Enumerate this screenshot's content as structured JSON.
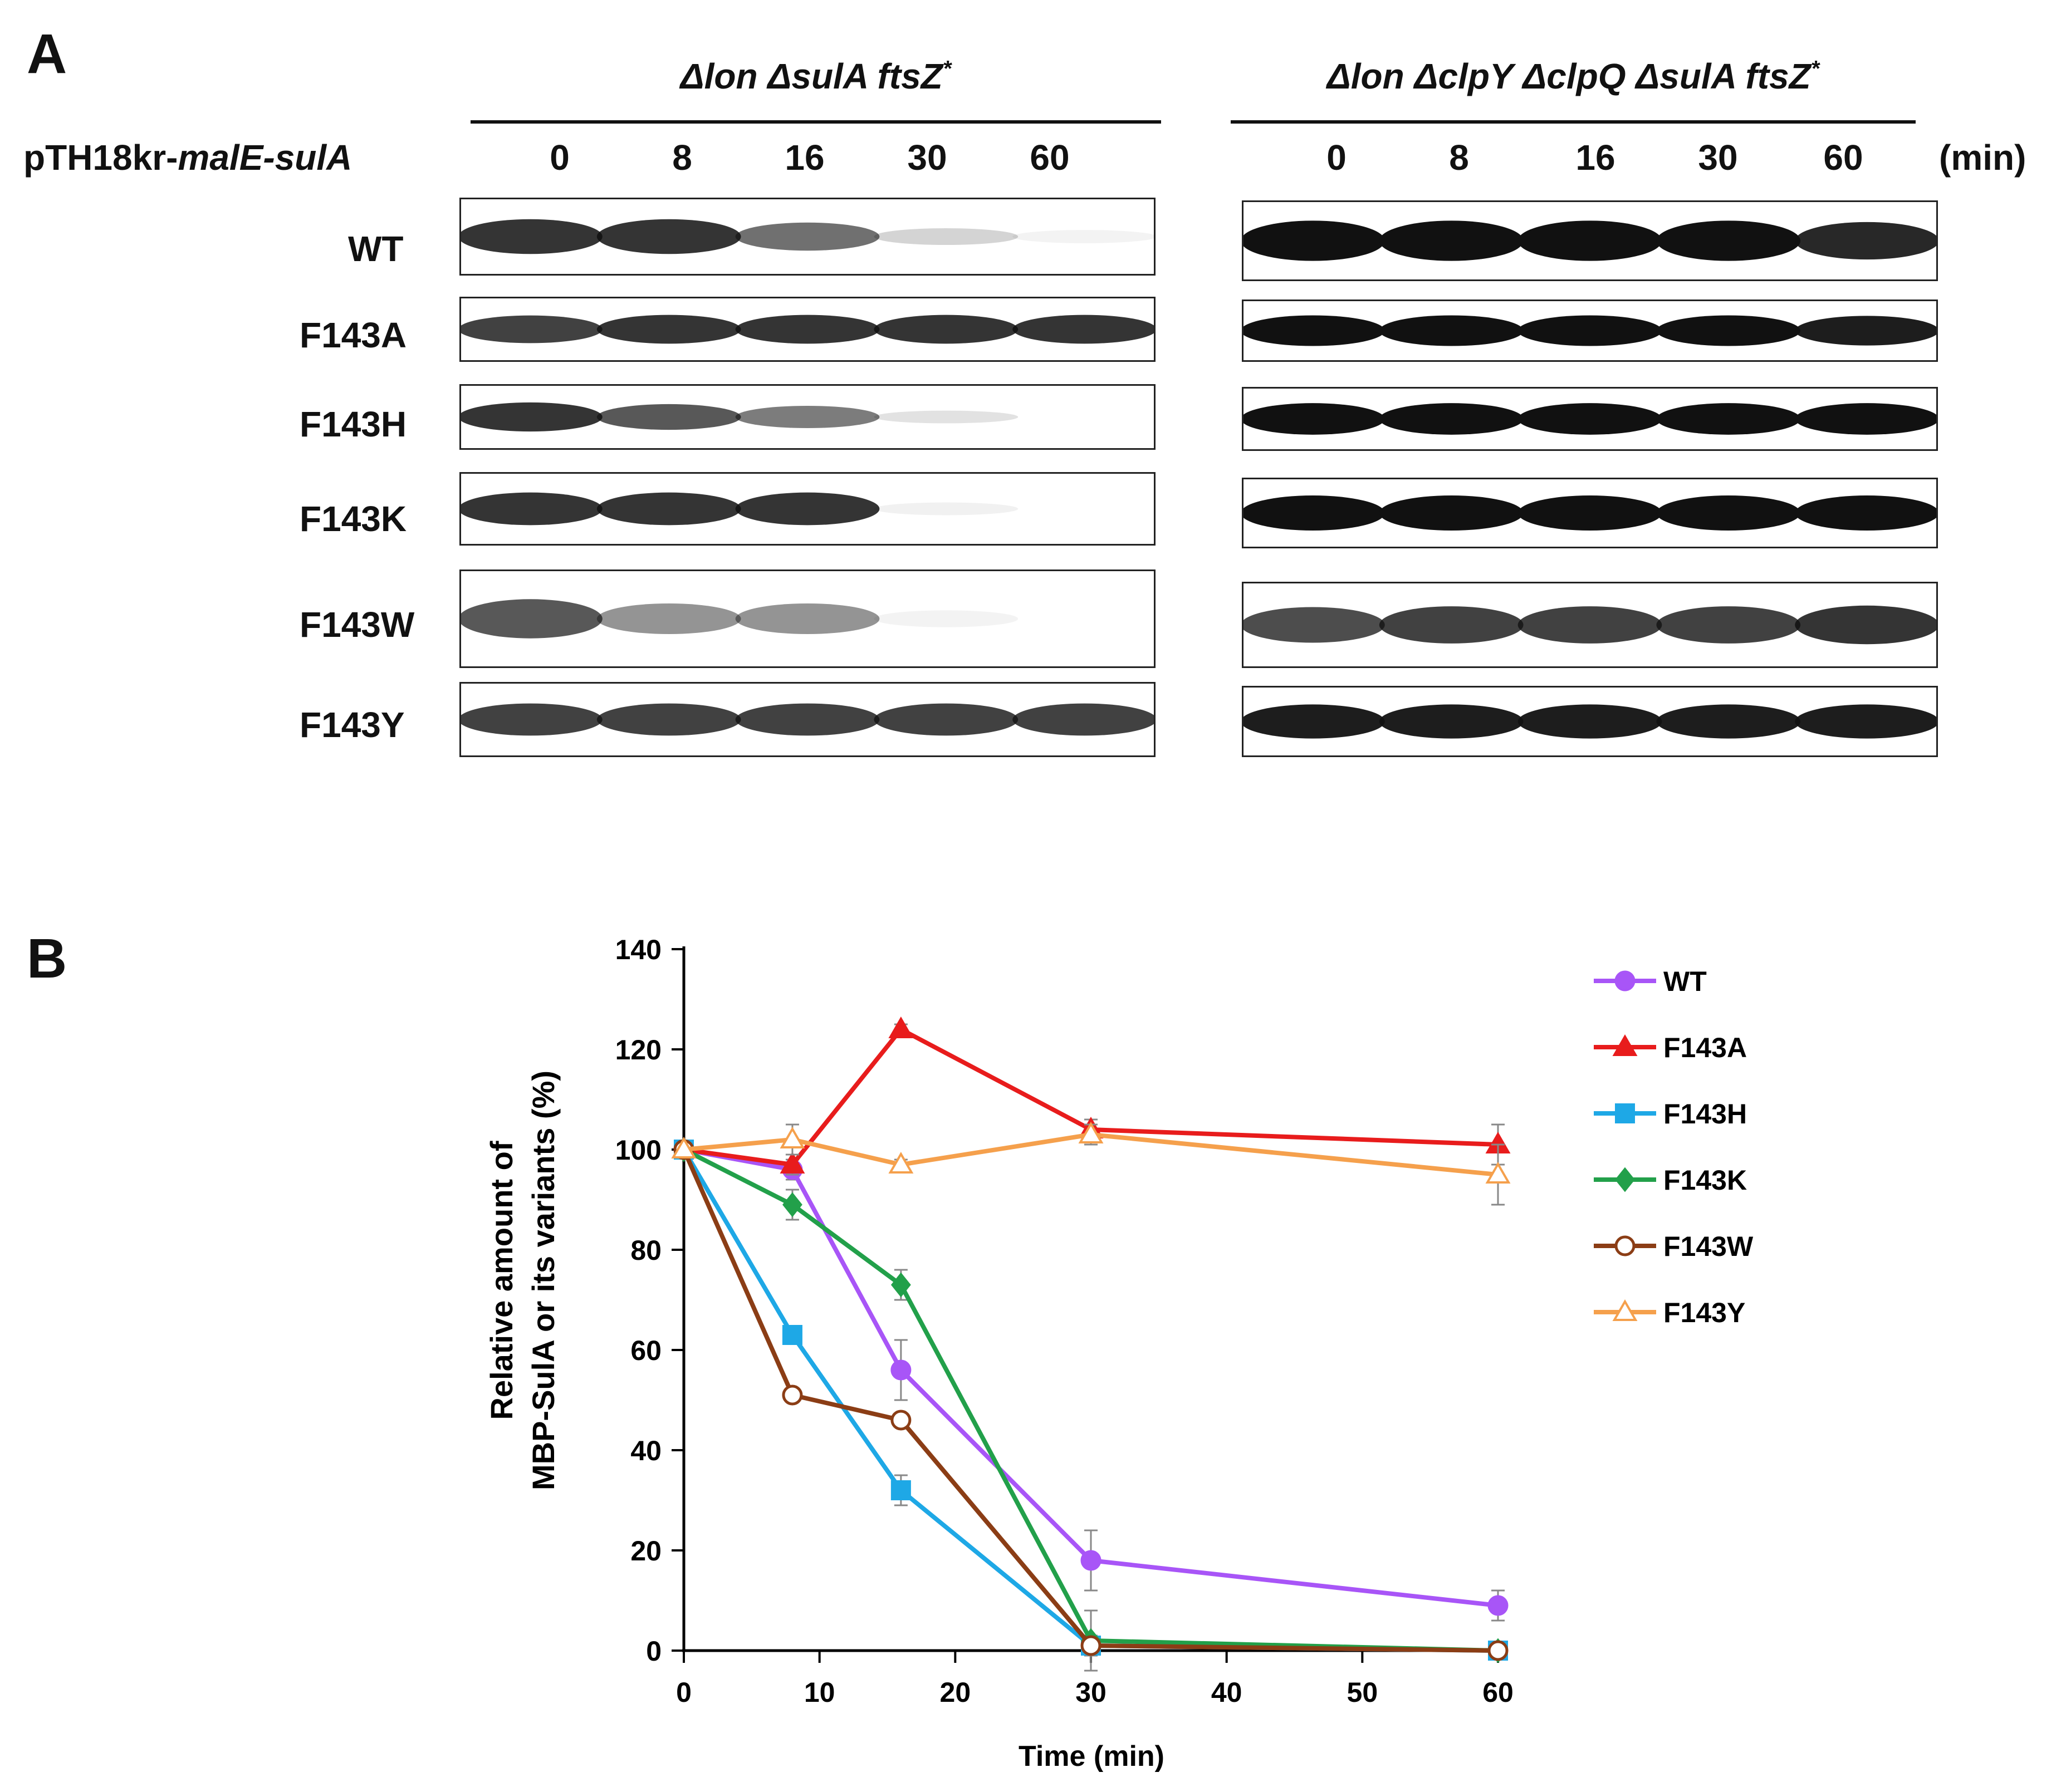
{
  "panel_a": {
    "letter": "A",
    "plasmid_prefix": "pTH18kr-",
    "plasmid_gene": "malE-sulA",
    "strain_left": "Δlon ΔsulA ftsZ",
    "strain_right": "Δlon ΔclpY ΔclpQ ΔsulA ftsZ",
    "strain_sup": "*",
    "time_points": [
      "0",
      "8",
      "16",
      "30",
      "60"
    ],
    "unit": "(min)",
    "rows": [
      "WT",
      "F143A",
      "F143H",
      "F143K",
      "F143W",
      "F143Y"
    ],
    "band_intensity_left": [
      [
        0.85,
        0.85,
        0.6,
        0.18,
        0.05
      ],
      [
        0.8,
        0.85,
        0.85,
        0.85,
        0.85
      ],
      [
        0.85,
        0.7,
        0.55,
        0.12,
        0.0
      ],
      [
        0.85,
        0.85,
        0.85,
        0.06,
        0.0
      ],
      [
        0.7,
        0.45,
        0.45,
        0.05,
        0.0
      ],
      [
        0.8,
        0.8,
        0.8,
        0.8,
        0.8
      ]
    ],
    "band_intensity_right": [
      [
        1,
        1,
        1,
        1,
        0.9
      ],
      [
        1,
        1,
        1,
        1,
        0.95
      ],
      [
        1,
        1,
        1,
        1,
        1
      ],
      [
        1,
        1,
        1,
        1,
        1
      ],
      [
        0.75,
        0.8,
        0.8,
        0.8,
        0.85
      ],
      [
        0.95,
        0.95,
        0.95,
        0.95,
        0.95
      ]
    ]
  },
  "panel_b": {
    "letter": "B"
  },
  "chart_data": {
    "type": "line",
    "xlabel": "Time (min)",
    "ylabel_line1": "Relative amount of",
    "ylabel_line2": "MBP-SulA or its variants (%)",
    "x_ticks": [
      0,
      10,
      20,
      30,
      40,
      50,
      60
    ],
    "y_ticks": [
      0,
      20,
      40,
      60,
      80,
      100,
      120,
      140
    ],
    "xlim": [
      0,
      60
    ],
    "ylim": [
      0,
      140
    ],
    "x": [
      0,
      8,
      16,
      30,
      60
    ],
    "series": [
      {
        "name": "WT",
        "color": "#a855f7",
        "marker": "circle",
        "values": [
          100,
          96,
          56,
          18,
          9
        ],
        "errors": [
          0,
          2,
          6,
          6,
          3
        ]
      },
      {
        "name": "F143A",
        "color": "#e81c1c",
        "marker": "triangle",
        "values": [
          100,
          97,
          124,
          104,
          101
        ],
        "errors": [
          0,
          2,
          1,
          2,
          4
        ]
      },
      {
        "name": "F143H",
        "color": "#1ea8e6",
        "marker": "square",
        "values": [
          100,
          63,
          32,
          1,
          0
        ],
        "errors": [
          0,
          1,
          3,
          2,
          0
        ]
      },
      {
        "name": "F143K",
        "color": "#22a04a",
        "marker": "diamond",
        "values": [
          100,
          89,
          73,
          2,
          0
        ],
        "errors": [
          0,
          3,
          3,
          6,
          0
        ]
      },
      {
        "name": "F143W",
        "color": "#8b3d15",
        "marker": "open-circle",
        "values": [
          100,
          51,
          46,
          1,
          0
        ],
        "errors": [
          0,
          1,
          1,
          1,
          0
        ]
      },
      {
        "name": "F143Y",
        "color": "#f5a04c",
        "marker": "open-triangle",
        "values": [
          100,
          102,
          97,
          103,
          95
        ],
        "errors": [
          0,
          3,
          1,
          2,
          6
        ]
      }
    ]
  }
}
